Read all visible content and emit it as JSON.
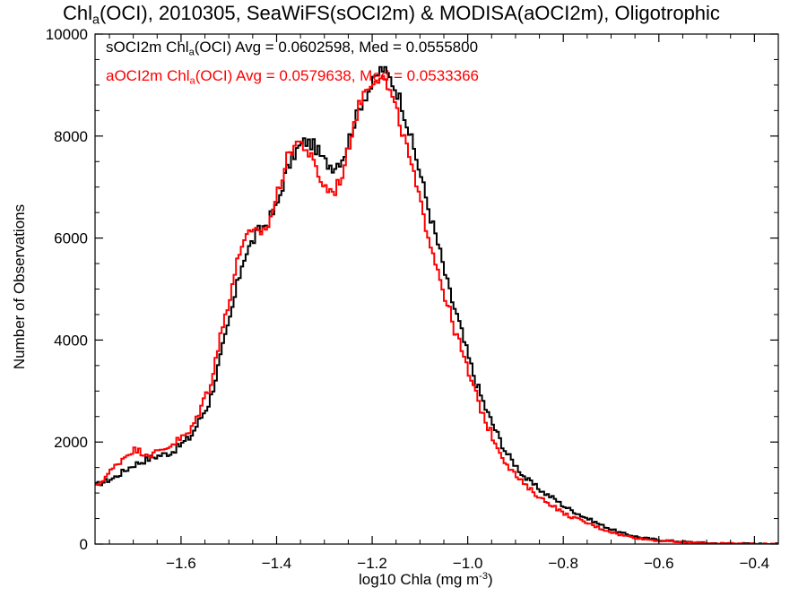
{
  "chart_data": {
    "type": "line",
    "title": {
      "pre": "Chl",
      "sub": "a",
      "post": "(OCI), 2010305, SeaWiFS(sOCI2m) & MODISA(aOCI2m), Oligotrophic"
    },
    "xlabel": {
      "pre": "log10 Chla (mg m",
      "sup": "-3",
      "post": ")"
    },
    "ylabel": "Number of Observations",
    "xlim": [
      -1.78,
      -0.35
    ],
    "ylim": [
      0,
      10000
    ],
    "x_ticks": [
      -1.6,
      -1.4,
      -1.2,
      -1.0,
      -0.8,
      -0.6,
      -0.4
    ],
    "x_tick_labels": [
      "−1.6",
      "−1.4",
      "−1.2",
      "−1.0",
      "−0.8",
      "−0.6",
      "−0.4"
    ],
    "y_ticks": [
      0,
      2000,
      4000,
      6000,
      8000,
      10000
    ],
    "y_tick_labels": [
      "0",
      "2000",
      "4000",
      "6000",
      "8000",
      "10000"
    ],
    "annotations": [
      {
        "pre": "sOCI2m Chl",
        "sub": "a",
        "post": "(OCI) Avg = 0.0602598, Med = 0.0555800",
        "color": "#000000"
      },
      {
        "pre": "aOCI2m Chl",
        "sub": "a",
        "post": "(OCI) Avg = 0.0579638, Med = 0.0533366",
        "color": "#ff0000"
      }
    ],
    "series": [
      {
        "color": "#000000",
        "x": [
          -1.78,
          -1.74,
          -1.7,
          -1.66,
          -1.62,
          -1.58,
          -1.54,
          -1.5,
          -1.47,
          -1.44,
          -1.42,
          -1.4,
          -1.38,
          -1.36,
          -1.34,
          -1.32,
          -1.3,
          -1.28,
          -1.26,
          -1.24,
          -1.22,
          -1.2,
          -1.18,
          -1.16,
          -1.14,
          -1.12,
          -1.1,
          -1.08,
          -1.06,
          -1.04,
          -1.02,
          -1.0,
          -0.98,
          -0.96,
          -0.94,
          -0.92,
          -0.9,
          -0.88,
          -0.86,
          -0.84,
          -0.82,
          -0.8,
          -0.76,
          -0.72,
          -0.68,
          -0.64,
          -0.6,
          -0.55,
          -0.5,
          -0.45,
          -0.4,
          -0.35
        ],
        "y": [
          1150,
          1300,
          1550,
          1700,
          1800,
          2100,
          2800,
          4300,
          5600,
          6100,
          6300,
          6600,
          7300,
          7700,
          7900,
          7800,
          7500,
          7400,
          7600,
          8200,
          8700,
          9000,
          9350,
          9100,
          8700,
          8000,
          7300,
          6500,
          5800,
          5000,
          4400,
          3700,
          3100,
          2600,
          2200,
          1800,
          1550,
          1300,
          1150,
          1000,
          900,
          750,
          550,
          370,
          220,
          130,
          80,
          45,
          20,
          10,
          5,
          2
        ]
      },
      {
        "color": "#ff0000",
        "x": [
          -1.78,
          -1.74,
          -1.72,
          -1.7,
          -1.68,
          -1.66,
          -1.62,
          -1.58,
          -1.54,
          -1.5,
          -1.47,
          -1.44,
          -1.42,
          -1.4,
          -1.38,
          -1.36,
          -1.34,
          -1.32,
          -1.3,
          -1.28,
          -1.26,
          -1.24,
          -1.22,
          -1.2,
          -1.18,
          -1.16,
          -1.14,
          -1.12,
          -1.1,
          -1.08,
          -1.06,
          -1.04,
          -1.02,
          -1.0,
          -0.98,
          -0.96,
          -0.94,
          -0.92,
          -0.9,
          -0.88,
          -0.86,
          -0.84,
          -0.82,
          -0.8,
          -0.76,
          -0.72,
          -0.68,
          -0.64,
          -0.6,
          -0.55,
          -0.5,
          -0.45,
          -0.4,
          -0.35
        ],
        "y": [
          1100,
          1500,
          1700,
          1850,
          1800,
          1750,
          1950,
          2200,
          3100,
          4800,
          6000,
          6100,
          6200,
          6800,
          7500,
          7900,
          7800,
          7400,
          7000,
          6900,
          7300,
          8200,
          8800,
          9100,
          9200,
          8800,
          8200,
          7500,
          6700,
          6000,
          5300,
          4600,
          4000,
          3400,
          2850,
          2350,
          1950,
          1600,
          1350,
          1150,
          1000,
          850,
          750,
          600,
          450,
          300,
          180,
          110,
          65,
          35,
          18,
          8,
          4,
          2
        ]
      }
    ]
  }
}
